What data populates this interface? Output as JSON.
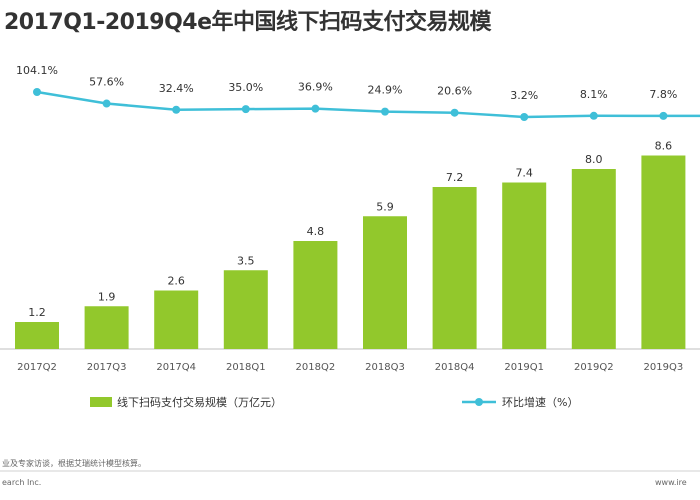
{
  "title": "2017Q1-2019Q4e年中国线下扫码支付交易规模",
  "chart_data": {
    "type": "bar+line",
    "categories": [
      "2017Q2",
      "2017Q3",
      "2017Q4",
      "2018Q1",
      "2018Q2",
      "2018Q3",
      "2018Q4",
      "2019Q1",
      "2019Q2",
      "2019Q3"
    ],
    "series": [
      {
        "name": "线下扫码支付交易规模（万亿元）",
        "type": "bar",
        "values": [
          1.2,
          1.9,
          2.6,
          3.5,
          4.8,
          5.9,
          7.2,
          7.4,
          8.0,
          8.6
        ],
        "labels": [
          "1.2",
          "1.9",
          "2.6",
          "3.5",
          "4.8",
          "5.9",
          "7.2",
          "7.4",
          "8.0",
          "8.6"
        ]
      },
      {
        "name": "环比增速（%）",
        "type": "line",
        "values": [
          104.1,
          57.6,
          32.4,
          35.0,
          36.9,
          24.9,
          20.6,
          3.2,
          8.1,
          7.8
        ],
        "labels": [
          "104.1%",
          "57.6%",
          "32.4%",
          "35.0%",
          "36.9%",
          "24.9%",
          "20.6%",
          "3.2%",
          "8.1%",
          "7.8%"
        ]
      }
    ],
    "bar_ylim": [
      0,
      10
    ],
    "colors": {
      "bar": "#92c82c",
      "line": "#3fbfd8"
    },
    "legend": "bottom"
  },
  "footer": {
    "source": "业及专家访谈，根据艾瑞统计模型核算。",
    "company": "earch Inc.",
    "site": "www.ire"
  }
}
